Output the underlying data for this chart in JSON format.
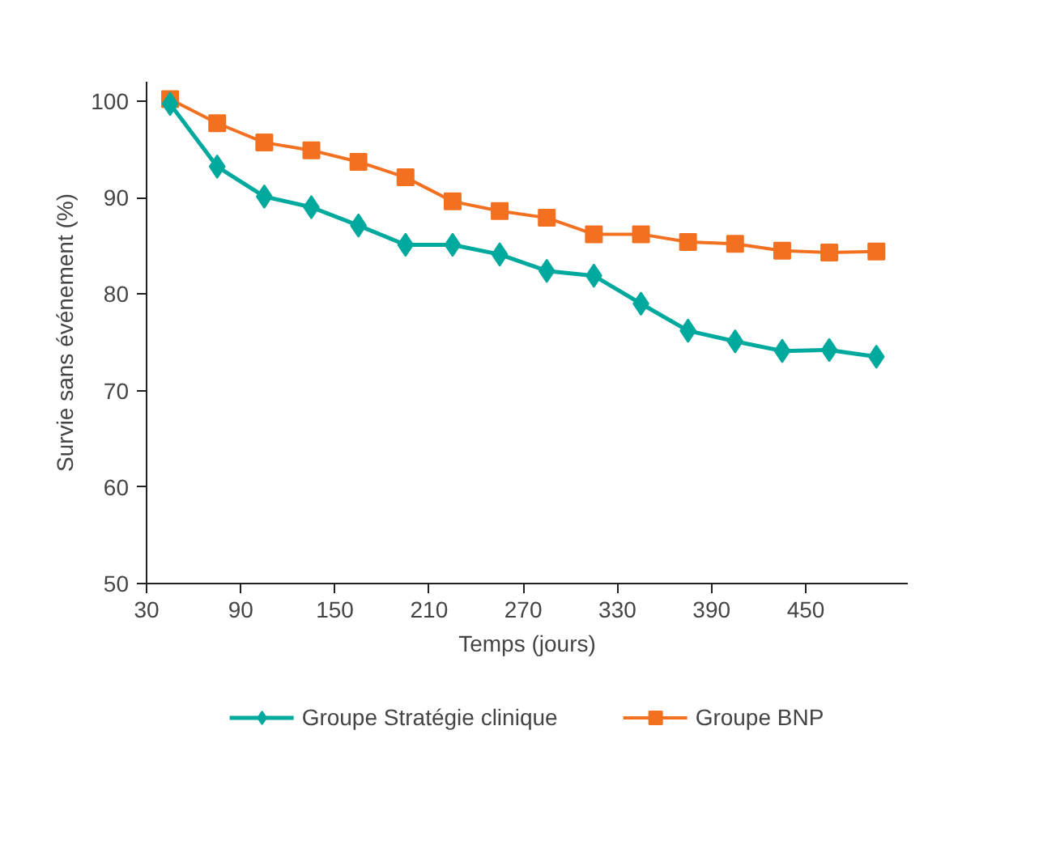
{
  "chart_data": {
    "type": "line",
    "xlabel": "Temps (jours)",
    "ylabel": "Survie sans événement (%)",
    "x": [
      45,
      75,
      105,
      135,
      165,
      195,
      225,
      255,
      285,
      315,
      345,
      375,
      405,
      435,
      465,
      495
    ],
    "series": [
      {
        "name": "Groupe Stratégie clinique",
        "color": "#00a99d",
        "marker": "diamond",
        "values": [
          99.7,
          93.2,
          90.1,
          89.0,
          87.1,
          85.1,
          85.1,
          84.1,
          82.4,
          81.9,
          79.0,
          76.2,
          75.1,
          74.1,
          74.2,
          73.5
        ]
      },
      {
        "name": "Groupe BNP",
        "color": "#f37021",
        "marker": "square",
        "values": [
          100.2,
          97.7,
          95.7,
          94.9,
          93.7,
          92.1,
          89.6,
          88.6,
          87.9,
          86.2,
          86.2,
          85.4,
          85.2,
          84.5,
          84.3,
          84.4
        ]
      }
    ],
    "xlim": [
      30,
      515
    ],
    "ylim": [
      50,
      102
    ],
    "xticks": [
      30,
      90,
      150,
      210,
      270,
      330,
      390,
      450
    ],
    "yticks": [
      50,
      60,
      70,
      80,
      90,
      100
    ],
    "grid": false,
    "legend": "bottom",
    "line_style": "solid"
  }
}
